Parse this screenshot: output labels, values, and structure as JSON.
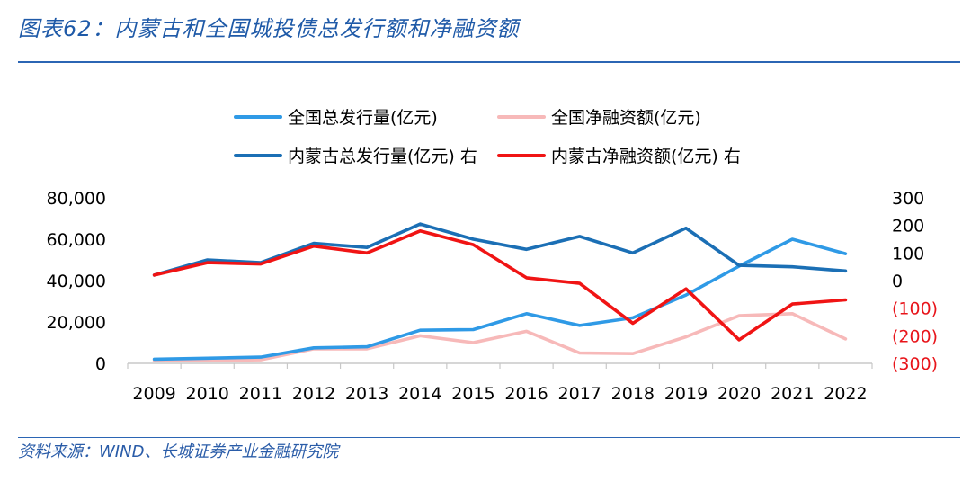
{
  "figure": {
    "title": "图表62：内蒙古和全国城投债总发行额和净融资额",
    "source": "资料来源：WIND、长城证券产业金融研究院"
  },
  "colors": {
    "national_total": "#2f9ae6",
    "national_net": "#f7b9b9",
    "nm_total": "#1b6fb5",
    "nm_net": "#f01414",
    "neg_tick": "#e8141a",
    "text": "#000000",
    "brand": "#1f5aa8"
  },
  "chart_data": {
    "type": "line",
    "title": "",
    "xlabel": "",
    "ylabel": "",
    "categories": [
      "2009",
      "2010",
      "2011",
      "2012",
      "2013",
      "2014",
      "2015",
      "2016",
      "2017",
      "2018",
      "2019",
      "2020",
      "2021",
      "2022"
    ],
    "y_left": {
      "ylim": [
        0,
        80000
      ],
      "ticks": [
        0,
        20000,
        40000,
        60000,
        80000
      ],
      "tick_labels": [
        "0",
        "20,000",
        "40,000",
        "60,000",
        "80,000"
      ]
    },
    "y_right": {
      "ylim": [
        -300,
        300
      ],
      "ticks": [
        -300,
        -200,
        -100,
        0,
        100,
        200,
        300
      ],
      "tick_labels": [
        "(300)",
        "(200)",
        "(100)",
        "0",
        "100",
        "200",
        "300"
      ]
    },
    "legend_position": "top-center",
    "series": [
      {
        "name": "全国总发行量(亿元)",
        "axis": "left",
        "color_key": "national_total",
        "values": [
          2000,
          2500,
          3000,
          7500,
          8000,
          16000,
          16300,
          24000,
          18300,
          22000,
          33000,
          47000,
          60000,
          53000
        ]
      },
      {
        "name": "全国净融资额(亿元)",
        "axis": "left",
        "color_key": "national_net",
        "values": [
          1300,
          1500,
          1700,
          7000,
          7000,
          13300,
          10000,
          15500,
          5000,
          4700,
          12800,
          23000,
          24000,
          11800
        ]
      },
      {
        "name": "内蒙古总发行量(亿元) 右",
        "axis": "right",
        "color_key": "nm_total",
        "values": [
          20,
          75,
          65,
          135,
          120,
          205,
          150,
          113,
          160,
          100,
          190,
          55,
          50,
          35
        ]
      },
      {
        "name": "内蒙古净融资额(亿元) 右",
        "axis": "right",
        "color_key": "nm_net",
        "values": [
          20,
          65,
          60,
          125,
          100,
          180,
          130,
          10,
          -10,
          -155,
          -30,
          -215,
          -85,
          -70
        ]
      }
    ]
  }
}
